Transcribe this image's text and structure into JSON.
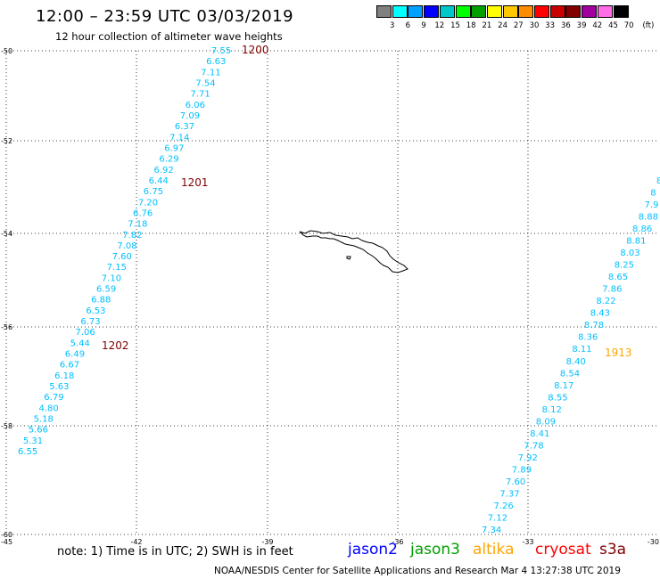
{
  "title": "12:00 – 23:59 UTC 03/03/2019",
  "subtitle": "12 hour collection of altimeter wave heights",
  "legend": {
    "colors": [
      "#808080",
      "#00ffff",
      "#00a0ff",
      "#0000ff",
      "#00c8c8",
      "#00ff00",
      "#00a000",
      "#ffff00",
      "#ffc800",
      "#ff8c00",
      "#ff0000",
      "#c80000",
      "#820000",
      "#a000a0",
      "#ff6ee6",
      "#000000"
    ],
    "labels": [
      "3",
      "6",
      "9",
      "12",
      "15",
      "18",
      "21",
      "24",
      "27",
      "30",
      "33",
      "36",
      "39",
      "42",
      "45",
      "70",
      "(ft)"
    ]
  },
  "map": {
    "lon_ticks": [
      "-45",
      "-42",
      "-39",
      "-36",
      "-33",
      "-30"
    ],
    "lat_ticks": [
      "-50",
      "-52",
      "-54",
      "-56",
      "-58",
      "-60"
    ],
    "wave_color": "#00bfff",
    "track1_labels": [
      "7.55",
      "6.63",
      "7.11",
      "7.54",
      "7.71",
      "6.06",
      "7.09",
      "6.37",
      "7.14",
      "6.97",
      "6.29",
      "6.92",
      "6.44",
      "6.75",
      "7.20",
      "6.76",
      "7.18",
      "7.82",
      "7.08",
      "7.60",
      "7.15",
      "7.10",
      "6.59",
      "6.88",
      "6.53",
      "6.73",
      "7.06",
      "5.44",
      "6.49",
      "6.67",
      "6.18",
      "5.63",
      "6.79",
      "4.80",
      "5.18",
      "5.66",
      "5.31",
      "6.55"
    ],
    "track2_labels": [
      "8",
      "8",
      "7.9",
      "8.88",
      "8.86",
      "8.81",
      "8.03",
      "8.25",
      "8.65",
      "7.86",
      "8.22",
      "8.43",
      "8.78",
      "8.36",
      "8.11",
      "8.40",
      "8.54",
      "8.17",
      "8.55",
      "8.12",
      "8.09",
      "8.41",
      "7.78",
      "7.92",
      "7.89",
      "7.60",
      "7.37",
      "7.26",
      "7.12",
      "7.34"
    ],
    "time_labels": [
      {
        "text": "1200",
        "color": "#800000"
      },
      {
        "text": "1201",
        "color": "#800000"
      },
      {
        "text": "1202",
        "color": "#800000"
      },
      {
        "text": "1913",
        "color": "#ffa500"
      }
    ]
  },
  "footer": {
    "note": "note:  1) Time is in UTC;  2) SWH is in feet",
    "satellites": [
      {
        "name": "jason2",
        "color": "#0000ff"
      },
      {
        "name": "jason3",
        "color": "#00a000"
      },
      {
        "name": "altika",
        "color": "#ffa500"
      },
      {
        "name": "cryosat",
        "color": "#ff0000"
      },
      {
        "name": "s3a",
        "color": "#800000"
      }
    ],
    "credit": "NOAA/NESDIS Center for Satellite Applications and Research     Mar  4 13:27:38 UTC 2019"
  }
}
